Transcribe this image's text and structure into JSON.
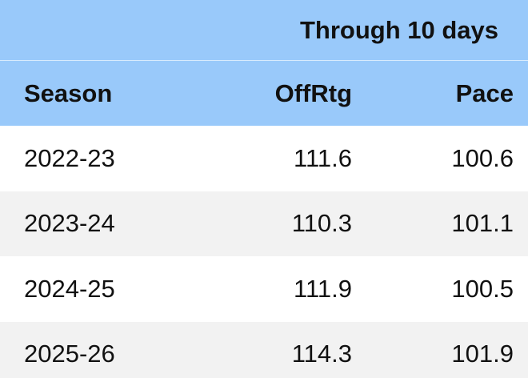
{
  "table": {
    "group_header": "Through 10 days",
    "columns": [
      "Season",
      "OffRtg",
      "Pace"
    ],
    "rows": [
      [
        "2022-23",
        111.6,
        100.6
      ],
      [
        "2023-24",
        110.3,
        101.1
      ],
      [
        "2024-25",
        111.9,
        100.5
      ],
      [
        "2025-26",
        114.3,
        101.9
      ]
    ]
  }
}
